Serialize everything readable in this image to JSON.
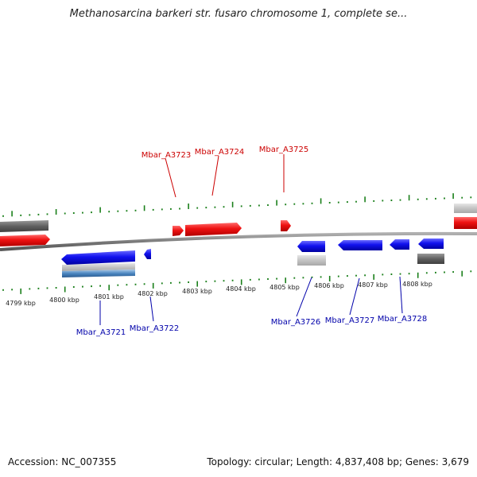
{
  "title": "Methanosarcina barkeri str. fusaro chromosome 1, complete se...",
  "accession": "Accession: NC_007355",
  "topology": "Topology: circular; Length: 4,837,408 bp; Genes: 3,679",
  "colors": {
    "forward_gene": "#ee1111",
    "reverse_gene": "#1111ee",
    "forward_label": "#cc0000",
    "reverse_label": "#0000aa",
    "backbone": "#808080",
    "tick": "#1a7f1a",
    "other_feature_dark": "#606060",
    "other_feature_light": "#c0c0c0"
  },
  "axis_labels": [
    "4799 kbp",
    "4800 kbp",
    "4801 kbp",
    "4802 kbp",
    "4803 kbp",
    "4804 kbp",
    "4805 kbp",
    "4806 kbp",
    "4807 kbp",
    "4808 kbp"
  ],
  "forward_genes": [
    "Mbar_A3723",
    "Mbar_A3724",
    "Mbar_A3725"
  ],
  "reverse_genes": [
    "Mbar_A3721",
    "Mbar_A3722",
    "Mbar_A3726",
    "Mbar_A3727",
    "Mbar_A3728"
  ]
}
